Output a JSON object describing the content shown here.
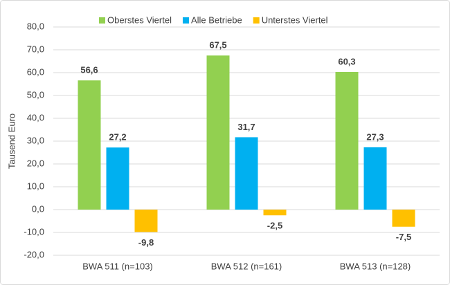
{
  "chart_data": {
    "type": "bar",
    "categories": [
      "BWA 511 (n=103)",
      "BWA 512 (n=161)",
      "BWA 513 (n=128)"
    ],
    "series": [
      {
        "name": "Oberstes Viertel",
        "color": "#92d050",
        "values": [
          56.6,
          67.5,
          60.3
        ],
        "value_labels": [
          "56,6",
          "67,5",
          "60,3"
        ]
      },
      {
        "name": "Alle Betriebe",
        "color": "#00b0f0",
        "values": [
          27.2,
          31.7,
          27.3
        ],
        "value_labels": [
          "27,2",
          "31,7",
          "27,3"
        ]
      },
      {
        "name": "Unterstes Viertel",
        "color": "#ffc000",
        "values": [
          -9.8,
          -2.5,
          -7.5
        ],
        "value_labels": [
          "-9,8",
          "-2,5",
          "-7,5"
        ]
      }
    ],
    "y_label": "Tausend Euro",
    "ylim": [
      -20,
      80
    ],
    "yticks": [
      {
        "value": -20,
        "label": "-20,0"
      },
      {
        "value": -10,
        "label": "-10,0"
      },
      {
        "value": 0,
        "label": "0,0"
      },
      {
        "value": 10,
        "label": "10,0"
      },
      {
        "value": 20,
        "label": "20,0"
      },
      {
        "value": 30,
        "label": "30,0"
      },
      {
        "value": 40,
        "label": "40,0"
      },
      {
        "value": 50,
        "label": "50,0"
      },
      {
        "value": 60,
        "label": "60,0"
      },
      {
        "value": 70,
        "label": "70,0"
      },
      {
        "value": 80,
        "label": "80,0"
      }
    ],
    "grid": true,
    "legend": "top"
  }
}
